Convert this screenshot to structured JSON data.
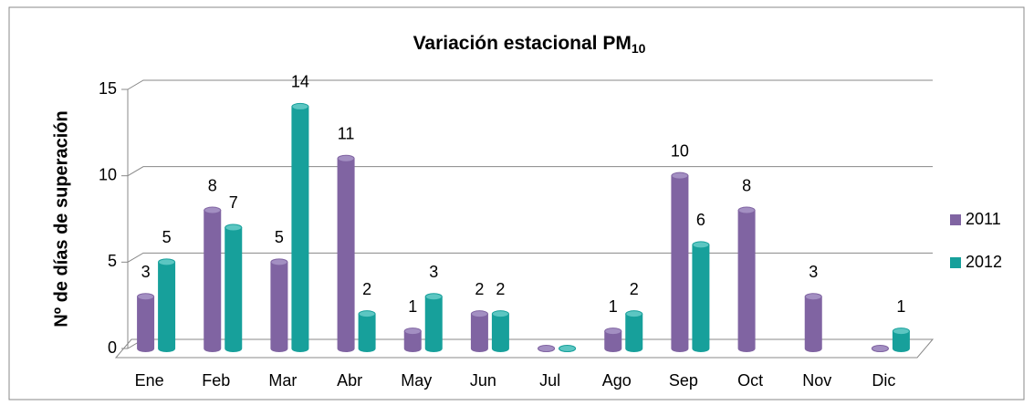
{
  "chart_data": {
    "type": "bar3d",
    "title": "Variación estacional PM",
    "title_subscript": "10",
    "y_label": "Nº de días de superación",
    "categories": [
      "Ene",
      "Feb",
      "Mar",
      "Abr",
      "May",
      "Jun",
      "Jul",
      "Ago",
      "Sep",
      "Oct",
      "Nov",
      "Dic"
    ],
    "series": [
      {
        "name": "2011",
        "color": "#8064a2",
        "top_color": "#a38fc2",
        "values": [
          3,
          8,
          5,
          11,
          1,
          2,
          0,
          1,
          10,
          8,
          3,
          0
        ]
      },
      {
        "name": "2012",
        "color": "#17a09b",
        "top_color": "#5cc6c2",
        "values": [
          5,
          7,
          14,
          2,
          3,
          2,
          0,
          2,
          6,
          null,
          null,
          1
        ]
      }
    ],
    "ylim": [
      0,
      15
    ],
    "yticks": [
      0,
      5,
      10,
      15
    ],
    "grid": true,
    "legend": "right"
  }
}
